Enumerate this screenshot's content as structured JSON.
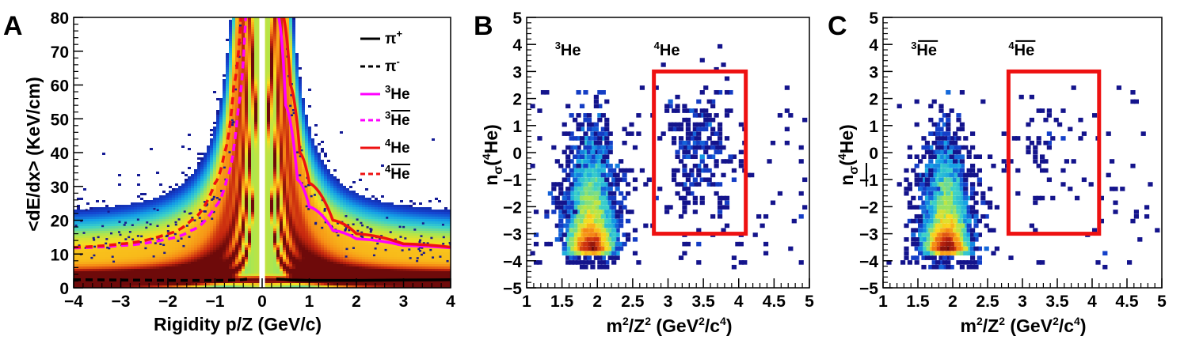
{
  "chart_data": [
    {
      "panel": "A",
      "type": "heatmap",
      "title": "",
      "xlabel": "Rigidity p/Z (GeV/c)",
      "ylabel": "<dE/dx> (KeV/cm)",
      "xlim": [
        -4,
        4
      ],
      "ylim": [
        0,
        80
      ],
      "xticks": [
        -4,
        -3,
        -2,
        -1,
        0,
        1,
        2,
        3,
        4
      ],
      "xtick_labels": [
        "−4",
        "−3",
        "−2",
        "−1",
        "0",
        "1",
        "2",
        "3",
        "4"
      ],
      "yticks": [
        0,
        10,
        20,
        30,
        40,
        50,
        60,
        70,
        80
      ],
      "ytick_labels": [
        "0",
        "10",
        "20",
        "30",
        "40",
        "50",
        "60",
        "70",
        "80"
      ],
      "legend_position": "top-right",
      "series": [
        {
          "name": "π⁺",
          "color": "#000000",
          "style": "solid",
          "x": [
            0.3,
            0.6,
            1,
            2,
            3,
            4
          ],
          "y": [
            2.6,
            2.3,
            2.2,
            2.2,
            2.3,
            2.4
          ]
        },
        {
          "name": "π⁻",
          "color": "#000000",
          "style": "dashed",
          "x": [
            -4,
            -3,
            -2,
            -1,
            -0.6,
            -0.3
          ],
          "y": [
            2.4,
            2.3,
            2.2,
            2.2,
            2.3,
            2.6
          ]
        },
        {
          "name": "³He",
          "color": "#ff00ff",
          "style": "solid",
          "x": [
            0.35,
            0.5,
            0.75,
            1,
            1.5,
            2,
            3,
            4
          ],
          "y": [
            80,
            54,
            32,
            24,
            17,
            14.5,
            12.5,
            11.8
          ]
        },
        {
          "name": "³He̅",
          "color": "#ff00ff",
          "style": "dashed",
          "x": [
            -4,
            -3,
            -2,
            -1.5,
            -1,
            -0.75,
            -0.5,
            -0.35
          ],
          "y": [
            11.8,
            12.5,
            14.5,
            17,
            24,
            32,
            54,
            80
          ]
        },
        {
          "name": "⁴He",
          "color": "#ee1111",
          "style": "solid",
          "x": [
            0.45,
            0.6,
            0.8,
            1,
            1.5,
            2,
            3,
            4
          ],
          "y": [
            80,
            60,
            40,
            31,
            20,
            16,
            13,
            12
          ]
        },
        {
          "name": "⁴He̅",
          "color": "#ee1111",
          "style": "dashed",
          "x": [
            -4,
            -3,
            -2,
            -1.5,
            -1,
            -0.8,
            -0.6,
            -0.45
          ],
          "y": [
            12,
            13,
            16,
            20,
            31,
            40,
            60,
            80
          ]
        }
      ]
    },
    {
      "panel": "B",
      "type": "heatmap",
      "title": "",
      "xlabel": "m²/Z² (GeV²/c⁴)",
      "ylabel": "nσ(⁴He)",
      "xlim": [
        1,
        5
      ],
      "ylim": [
        -5,
        5
      ],
      "xticks": [
        1,
        1.5,
        2,
        2.5,
        3,
        3.5,
        4,
        4.5,
        5
      ],
      "xtick_labels": [
        "1",
        "1.5",
        "2",
        "2.5",
        "3",
        "3.5",
        "4",
        "4.5",
        "5"
      ],
      "yticks": [
        -5,
        -4,
        -3,
        -2,
        -1,
        0,
        1,
        2,
        3,
        4,
        5
      ],
      "ytick_labels": [
        "−5",
        "−4",
        "−3",
        "−2",
        "−1",
        "0",
        "1",
        "2",
        "3",
        "4",
        "5"
      ],
      "annotations": [
        {
          "text": "³He",
          "x": 1.4,
          "y": 3.6
        },
        {
          "text": "⁴He",
          "x": 2.8,
          "y": 3.6
        }
      ],
      "selection_box": {
        "x": [
          2.8,
          4.1
        ],
        "y": [
          -3,
          3
        ]
      },
      "clusters": [
        {
          "x": 1.9,
          "y": -3.5,
          "note": "³He peak"
        },
        {
          "x": 3.5,
          "y": 0.0,
          "note": "⁴He cluster"
        }
      ]
    },
    {
      "panel": "C",
      "type": "heatmap",
      "title": "",
      "xlabel": "m²/Z² (GeV²/c⁴)",
      "ylabel": "nσ(⁴He̅)",
      "xlim": [
        1,
        5
      ],
      "ylim": [
        -5,
        5
      ],
      "xticks": [
        1,
        1.5,
        2,
        2.5,
        3,
        3.5,
        4,
        4.5,
        5
      ],
      "xtick_labels": [
        "1",
        "1.5",
        "2",
        "2.5",
        "3",
        "3.5",
        "4",
        "4.5",
        "5"
      ],
      "yticks": [
        -5,
        -4,
        -3,
        -2,
        -1,
        0,
        1,
        2,
        3,
        4,
        5
      ],
      "ytick_labels": [
        "−5",
        "−4",
        "−3",
        "−2",
        "−1",
        "0",
        "1",
        "2",
        "3",
        "4",
        "5"
      ],
      "annotations": [
        {
          "text": "³He̅",
          "x": 1.4,
          "y": 3.6
        },
        {
          "text": "⁴He̅",
          "x": 2.8,
          "y": 3.6
        }
      ],
      "selection_box": {
        "x": [
          2.8,
          4.1
        ],
        "y": [
          -3,
          3
        ]
      },
      "clusters": [
        {
          "x": 1.9,
          "y": -3.5,
          "note": "³He̅ peak"
        }
      ]
    }
  ],
  "panel_labels": {
    "a": "A",
    "b": "B",
    "c": "C"
  },
  "axis_text": {
    "a_xlabel": "Rigidity p/Z (GeV/c)",
    "a_ylabel": "<dE/dx> (KeV/cm)",
    "m2_base": "m",
    "m2_mid": "/Z",
    "m2_tail": " (GeV",
    "m2_c": "/c",
    "m2_close": ")",
    "sup2": "2",
    "sup4": "4",
    "n_base": "n",
    "sigma": "σ",
    "paren_open": "(",
    "paren_close": ")",
    "he": "He"
  },
  "legend_text": {
    "pi": "π",
    "plus": "+",
    "minus": "-",
    "he": "He",
    "three": "3",
    "four": "4"
  },
  "colors": {
    "he3": "#ff00ff",
    "he4": "#ee1111",
    "pion": "#000000",
    "box": "#ee1111",
    "scatter": "#1a1a8c"
  }
}
